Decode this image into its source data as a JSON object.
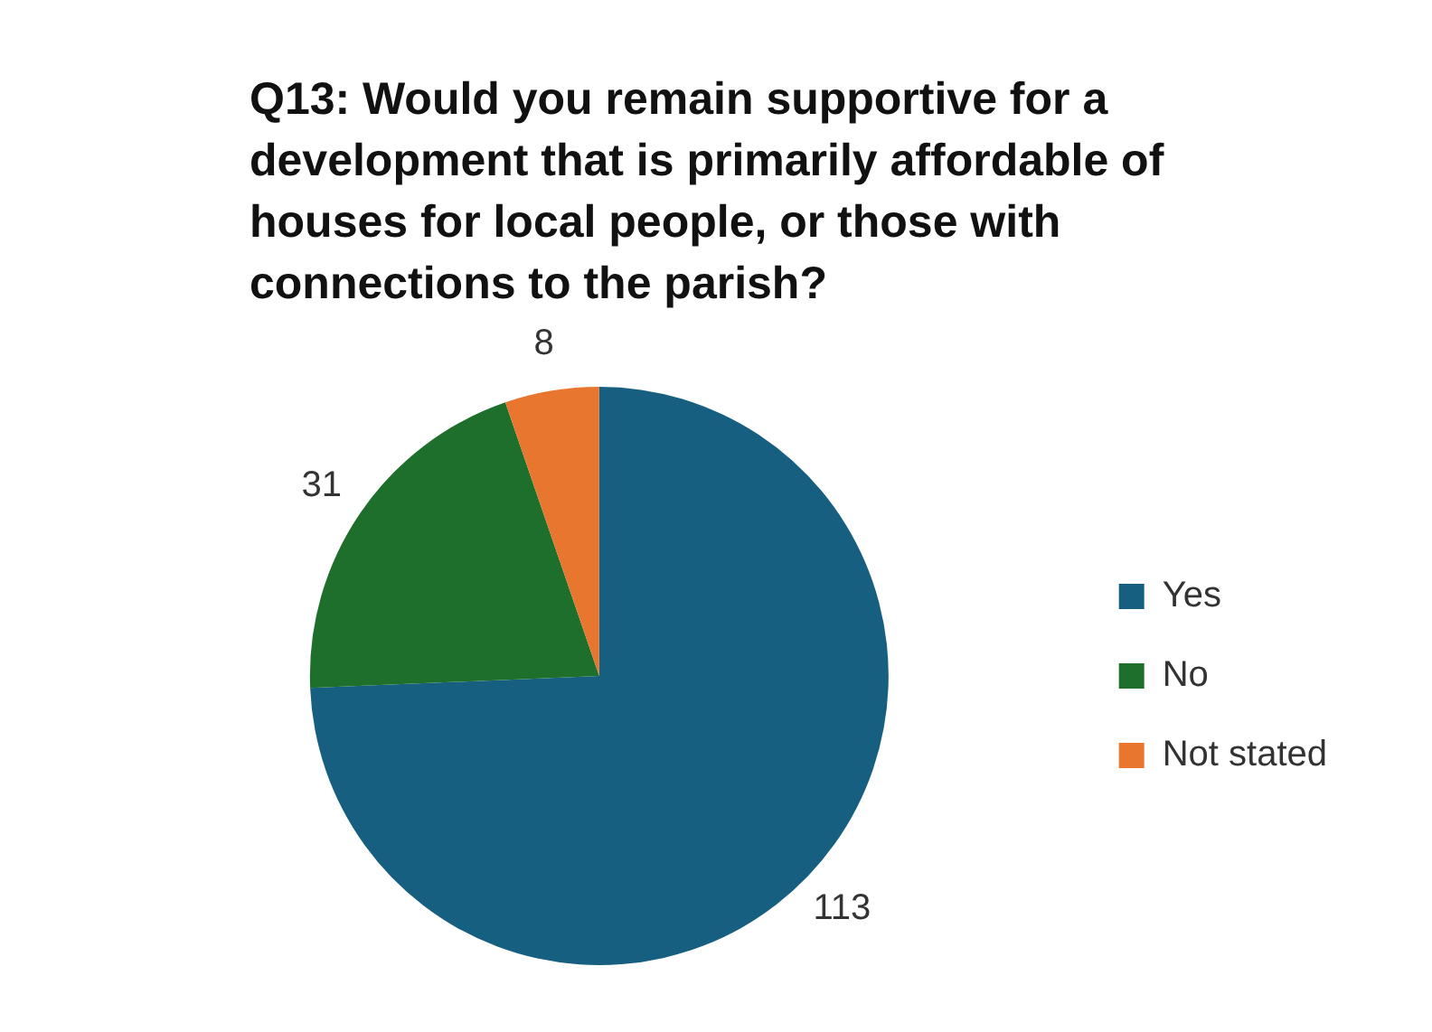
{
  "chart_data": {
    "type": "pie",
    "title": "Q13: Would you remain supportive for a development that is primarily affordable of houses for local people, or those with connections to the parish?",
    "categories": [
      "Yes",
      "No",
      "Not stated"
    ],
    "values": [
      113,
      31,
      8
    ],
    "colors": [
      "#175f80",
      "#1e6f2b",
      "#e8762f"
    ],
    "data_labels": true,
    "legend": "right"
  }
}
